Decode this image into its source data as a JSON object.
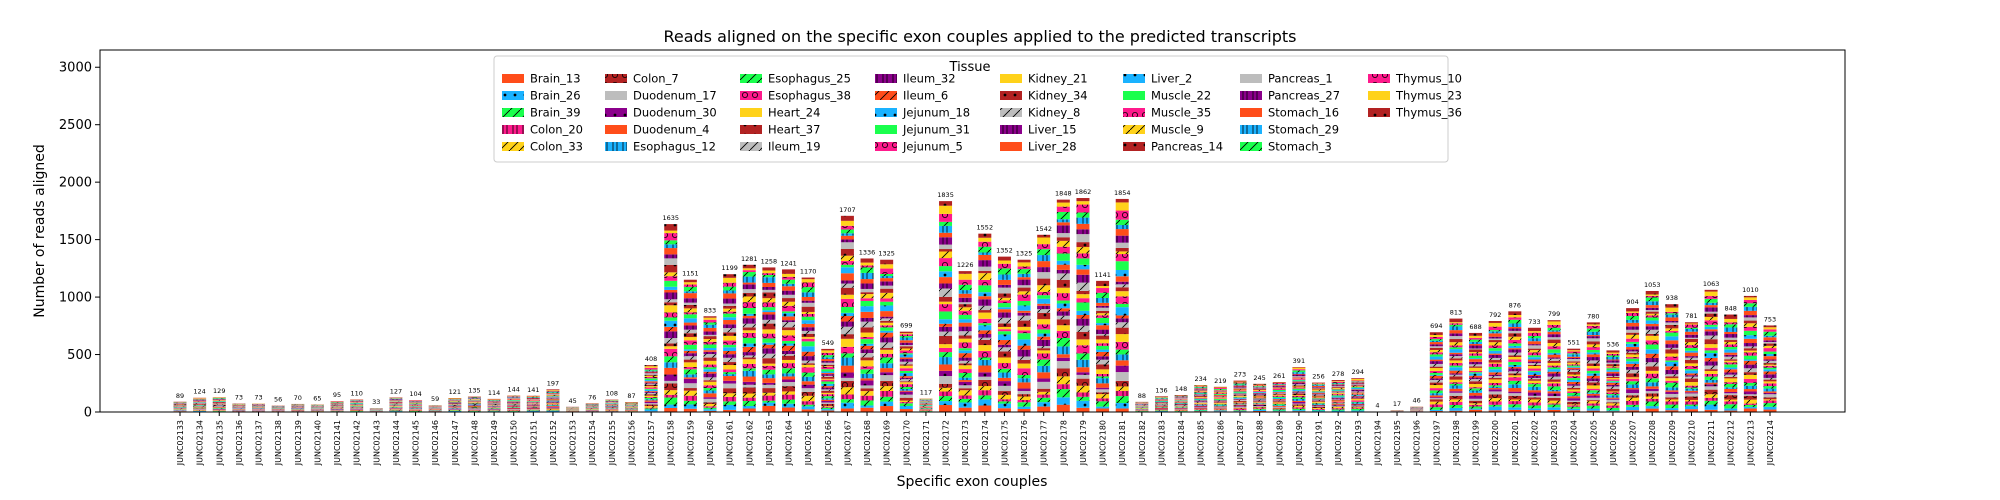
{
  "chart_data": {
    "type": "bar",
    "stacked": true,
    "title": "Reads aligned on the specific exon couples applied to the predicted transcripts",
    "xlabel": "Specific exon couples",
    "ylabel": "Number of reads aligned",
    "ylim": [
      0,
      3150
    ],
    "yticks": [
      0,
      500,
      1000,
      1500,
      2000,
      2500,
      3000
    ],
    "grid": false,
    "legend": {
      "title": "Tissue",
      "position": "top-center",
      "columns": 8,
      "entries": [
        "Brain_13",
        "Brain_26",
        "Brain_39",
        "Colon_20",
        "Colon_33",
        "Colon_7",
        "Duodenum_17",
        "Duodenum_30",
        "Duodenum_4",
        "Esophagus_12",
        "Esophagus_25",
        "Esophagus_38",
        "Heart_24",
        "Heart_37",
        "Ileum_19",
        "Ileum_32",
        "Ileum_6",
        "Jejunum_18",
        "Jejunum_31",
        "Jejunum_5",
        "Kidney_21",
        "Kidney_34",
        "Kidney_8",
        "Liver_15",
        "Liver_28",
        "Liver_2",
        "Muscle_22",
        "Muscle_35",
        "Muscle_9",
        "Pancreas_14",
        "Pancreas_1",
        "Pancreas_27",
        "Stomach_16",
        "Stomach_29",
        "Stomach_3",
        "Thymus_10",
        "Thymus_23",
        "Thymus_36"
      ]
    },
    "series_colors": [
      "#ff4d1a",
      "#1ab2ff",
      "#1aff4d",
      "#ff1a8c",
      "#ffd21a",
      "#b22222",
      "#bdbdbd",
      "#8b008b",
      "#ff4d1a",
      "#1ab2ff",
      "#1aff4d",
      "#ff1a8c",
      "#ffd21a",
      "#b22222",
      "#bdbdbd",
      "#8b008b",
      "#ff4d1a",
      "#1ab2ff",
      "#1aff4d",
      "#ff1a8c",
      "#ffd21a",
      "#b22222",
      "#bdbdbd",
      "#8b008b",
      "#ff4d1a",
      "#1ab2ff",
      "#1aff4d",
      "#ff1a8c",
      "#ffd21a",
      "#b22222",
      "#bdbdbd",
      "#8b008b",
      "#ff4d1a",
      "#1ab2ff",
      "#1aff4d",
      "#ff1a8c",
      "#ffd21a",
      "#b22222"
    ],
    "categories": [
      "JUNC02133",
      "JUNC02134",
      "JUNC02135",
      "JUNC02136",
      "JUNC02137",
      "JUNC02138",
      "JUNC02139",
      "JUNC02140",
      "JUNC02141",
      "JUNC02142",
      "JUNC02143",
      "JUNC02144",
      "JUNC02145",
      "JUNC02146",
      "JUNC02147",
      "JUNC02148",
      "JUNC02149",
      "JUNC02150",
      "JUNC02151",
      "JUNC02152",
      "JUNC02153",
      "JUNC02154",
      "JUNC02155",
      "JUNC02156",
      "JUNC02157",
      "JUNC02158",
      "JUNC02159",
      "JUNC02160",
      "JUNC02161",
      "JUNC02162",
      "JUNC02163",
      "JUNC02164",
      "JUNC02165",
      "JUNC02166",
      "JUNC02167",
      "JUNC02168",
      "JUNC02169",
      "JUNC02170",
      "JUNC02171",
      "JUNC02172",
      "JUNC02173",
      "JUNC02174",
      "JUNC02175",
      "JUNC02176",
      "JUNC02177",
      "JUNC02178",
      "JUNC02179",
      "JUNC02180",
      "JUNC02181",
      "JUNC02182",
      "JUNC02183",
      "JUNC02184",
      "JUNC02185",
      "JUNC02186",
      "JUNC02187",
      "JUNC02188",
      "JUNC02189",
      "JUNC02190",
      "JUNC02191",
      "JUNC02192",
      "JUNC02193",
      "JUNC02194",
      "JUNC02195",
      "JUNC02196",
      "JUNC02197",
      "JUNC02198",
      "JUNC02199",
      "JUNC02200",
      "JUNC02201",
      "JUNC02202",
      "JUNC02203",
      "JUNC02204",
      "JUNC02205",
      "JUNC02206",
      "JUNC02207",
      "JUNC02208",
      "JUNC02209",
      "JUNC02210",
      "JUNC02211",
      "JUNC02212",
      "JUNC02213",
      "JUNC02214"
    ],
    "totals": [
      89,
      124,
      129,
      73,
      73,
      56,
      70,
      65,
      95,
      110,
      33,
      127,
      104,
      59,
      121,
      135,
      114,
      144,
      141,
      197,
      45,
      76,
      108,
      87,
      408,
      1635,
      1151,
      833,
      1199,
      1281,
      1258,
      1241,
      1170,
      549,
      1707,
      1336,
      1325,
      699,
      117,
      1835,
      1226,
      1552,
      1352,
      1325,
      1542,
      1848,
      1862,
      1141,
      1854,
      88,
      136,
      148,
      234,
      219,
      273,
      245,
      261,
      391,
      256,
      278,
      294,
      4,
      17,
      46,
      694,
      813,
      688,
      792,
      876,
      733,
      799,
      551,
      780,
      536,
      904,
      1053,
      938,
      781,
      1063,
      848,
      1010,
      753
    ]
  }
}
